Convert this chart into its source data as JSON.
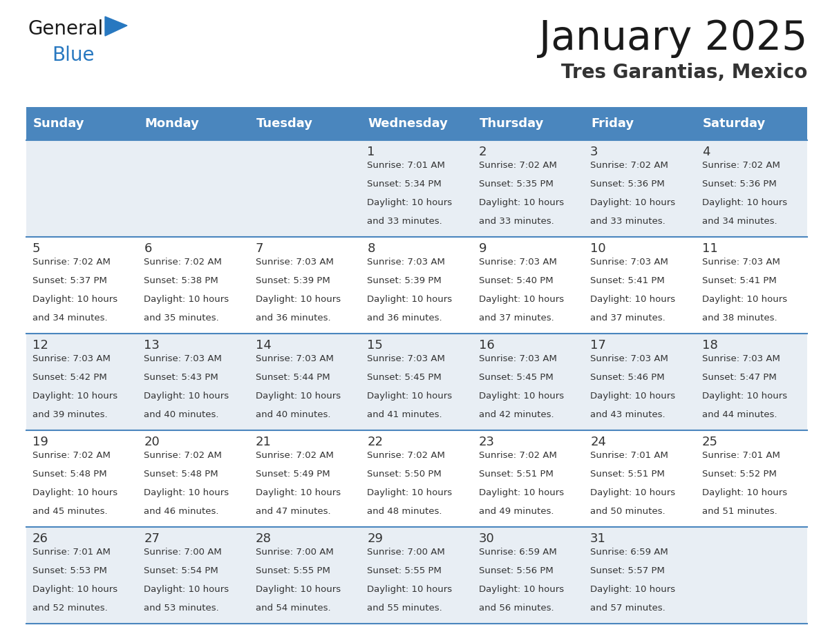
{
  "title": "January 2025",
  "subtitle": "Tres Garantias, Mexico",
  "header_bg": "#4a86be",
  "header_text_color": "#ffffff",
  "cell_bg_light": "#e8eef4",
  "cell_bg_white": "#ffffff",
  "row_separator_color": "#4a86be",
  "text_color": "#333333",
  "days_of_week": [
    "Sunday",
    "Monday",
    "Tuesday",
    "Wednesday",
    "Thursday",
    "Friday",
    "Saturday"
  ],
  "weeks": [
    [
      {
        "day": "",
        "sunrise": "",
        "sunset": "",
        "daylight": ""
      },
      {
        "day": "",
        "sunrise": "",
        "sunset": "",
        "daylight": ""
      },
      {
        "day": "",
        "sunrise": "",
        "sunset": "",
        "daylight": ""
      },
      {
        "day": "1",
        "sunrise": "7:01 AM",
        "sunset": "5:34 PM",
        "daylight": "10 hours and 33 minutes."
      },
      {
        "day": "2",
        "sunrise": "7:02 AM",
        "sunset": "5:35 PM",
        "daylight": "10 hours and 33 minutes."
      },
      {
        "day": "3",
        "sunrise": "7:02 AM",
        "sunset": "5:36 PM",
        "daylight": "10 hours and 33 minutes."
      },
      {
        "day": "4",
        "sunrise": "7:02 AM",
        "sunset": "5:36 PM",
        "daylight": "10 hours and 34 minutes."
      }
    ],
    [
      {
        "day": "5",
        "sunrise": "7:02 AM",
        "sunset": "5:37 PM",
        "daylight": "10 hours and 34 minutes."
      },
      {
        "day": "6",
        "sunrise": "7:02 AM",
        "sunset": "5:38 PM",
        "daylight": "10 hours and 35 minutes."
      },
      {
        "day": "7",
        "sunrise": "7:03 AM",
        "sunset": "5:39 PM",
        "daylight": "10 hours and 36 minutes."
      },
      {
        "day": "8",
        "sunrise": "7:03 AM",
        "sunset": "5:39 PM",
        "daylight": "10 hours and 36 minutes."
      },
      {
        "day": "9",
        "sunrise": "7:03 AM",
        "sunset": "5:40 PM",
        "daylight": "10 hours and 37 minutes."
      },
      {
        "day": "10",
        "sunrise": "7:03 AM",
        "sunset": "5:41 PM",
        "daylight": "10 hours and 37 minutes."
      },
      {
        "day": "11",
        "sunrise": "7:03 AM",
        "sunset": "5:41 PM",
        "daylight": "10 hours and 38 minutes."
      }
    ],
    [
      {
        "day": "12",
        "sunrise": "7:03 AM",
        "sunset": "5:42 PM",
        "daylight": "10 hours and 39 minutes."
      },
      {
        "day": "13",
        "sunrise": "7:03 AM",
        "sunset": "5:43 PM",
        "daylight": "10 hours and 40 minutes."
      },
      {
        "day": "14",
        "sunrise": "7:03 AM",
        "sunset": "5:44 PM",
        "daylight": "10 hours and 40 minutes."
      },
      {
        "day": "15",
        "sunrise": "7:03 AM",
        "sunset": "5:45 PM",
        "daylight": "10 hours and 41 minutes."
      },
      {
        "day": "16",
        "sunrise": "7:03 AM",
        "sunset": "5:45 PM",
        "daylight": "10 hours and 42 minutes."
      },
      {
        "day": "17",
        "sunrise": "7:03 AM",
        "sunset": "5:46 PM",
        "daylight": "10 hours and 43 minutes."
      },
      {
        "day": "18",
        "sunrise": "7:03 AM",
        "sunset": "5:47 PM",
        "daylight": "10 hours and 44 minutes."
      }
    ],
    [
      {
        "day": "19",
        "sunrise": "7:02 AM",
        "sunset": "5:48 PM",
        "daylight": "10 hours and 45 minutes."
      },
      {
        "day": "20",
        "sunrise": "7:02 AM",
        "sunset": "5:48 PM",
        "daylight": "10 hours and 46 minutes."
      },
      {
        "day": "21",
        "sunrise": "7:02 AM",
        "sunset": "5:49 PM",
        "daylight": "10 hours and 47 minutes."
      },
      {
        "day": "22",
        "sunrise": "7:02 AM",
        "sunset": "5:50 PM",
        "daylight": "10 hours and 48 minutes."
      },
      {
        "day": "23",
        "sunrise": "7:02 AM",
        "sunset": "5:51 PM",
        "daylight": "10 hours and 49 minutes."
      },
      {
        "day": "24",
        "sunrise": "7:01 AM",
        "sunset": "5:51 PM",
        "daylight": "10 hours and 50 minutes."
      },
      {
        "day": "25",
        "sunrise": "7:01 AM",
        "sunset": "5:52 PM",
        "daylight": "10 hours and 51 minutes."
      }
    ],
    [
      {
        "day": "26",
        "sunrise": "7:01 AM",
        "sunset": "5:53 PM",
        "daylight": "10 hours and 52 minutes."
      },
      {
        "day": "27",
        "sunrise": "7:00 AM",
        "sunset": "5:54 PM",
        "daylight": "10 hours and 53 minutes."
      },
      {
        "day": "28",
        "sunrise": "7:00 AM",
        "sunset": "5:55 PM",
        "daylight": "10 hours and 54 minutes."
      },
      {
        "day": "29",
        "sunrise": "7:00 AM",
        "sunset": "5:55 PM",
        "daylight": "10 hours and 55 minutes."
      },
      {
        "day": "30",
        "sunrise": "6:59 AM",
        "sunset": "5:56 PM",
        "daylight": "10 hours and 56 minutes."
      },
      {
        "day": "31",
        "sunrise": "6:59 AM",
        "sunset": "5:57 PM",
        "daylight": "10 hours and 57 minutes."
      },
      {
        "day": "",
        "sunrise": "",
        "sunset": "",
        "daylight": ""
      }
    ]
  ],
  "logo_color_general": "#1a1a1a",
  "logo_color_blue": "#2878c0",
  "logo_triangle_color": "#2878c0",
  "title_fontsize": 42,
  "subtitle_fontsize": 20,
  "header_fontsize": 13,
  "day_num_fontsize": 13,
  "cell_text_fontsize": 9.5
}
